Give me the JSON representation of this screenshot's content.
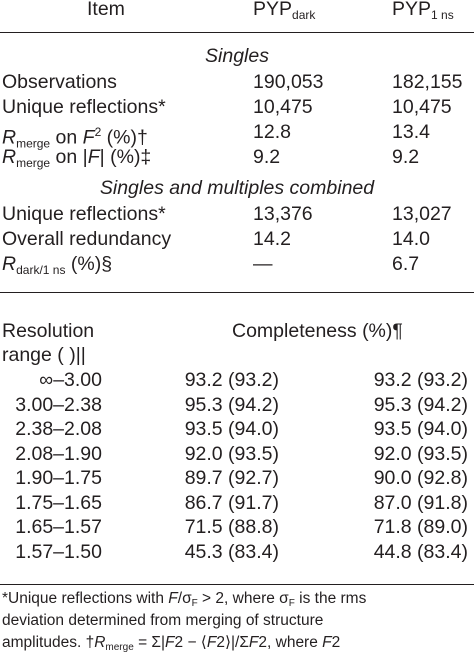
{
  "header": {
    "item": "Item",
    "col1_main": "PYP",
    "col1_sub": "dark",
    "col2_main": "PYP",
    "col2_sub": "1 ns"
  },
  "sections": {
    "singles": "Singles",
    "combined": "Singles and multiples combined"
  },
  "rows": {
    "observations": {
      "label": "Observations",
      "v1": "190,053",
      "v2": "182,155"
    },
    "unique1": {
      "label": "Unique reflections*",
      "v1": "10,475",
      "v2": "10,475"
    },
    "rmerge_f2": {
      "r": "R",
      "sub": "merge",
      "mid": " on ",
      "f": "F",
      "sup": "2",
      "tail": " (%)†",
      "v1": "12.8",
      "v2": "13.4"
    },
    "rmerge_f": {
      "r": "R",
      "sub": "merge",
      "mid": " on |",
      "f": "F",
      "tail": "| (%)‡",
      "v1": "9.2",
      "v2": "9.2"
    },
    "unique2": {
      "label": "Unique reflections*",
      "v1": "13,376",
      "v2": "13,027"
    },
    "redundancy": {
      "label": "Overall redundancy",
      "v1": "14.2",
      "v2": "14.0"
    },
    "rdark": {
      "r": "R",
      "sub": "dark/1 ns",
      "tail": " (%)§",
      "v1": "—",
      "v2": "6.7"
    }
  },
  "resolution": {
    "label_line1": "Resolution",
    "label_line2": "range (  )||",
    "completeness_header": "Completeness (%)¶",
    "rows": [
      {
        "range": "∞–3.00",
        "v1": "93.2 (93.2)",
        "v2": "93.2 (93.2)"
      },
      {
        "range": "3.00–2.38",
        "v1": "95.3 (94.2)",
        "v2": "95.3 (94.2)"
      },
      {
        "range": "2.38–2.08",
        "v1": "93.5 (94.0)",
        "v2": "93.5 (94.0)"
      },
      {
        "range": "2.08–1.90",
        "v1": "92.0 (93.5)",
        "v2": "92.0 (93.5)"
      },
      {
        "range": "1.90–1.75",
        "v1": "89.7 (92.7)",
        "v2": "90.0 (92.8)"
      },
      {
        "range": "1.75–1.65",
        "v1": "86.7 (91.7)",
        "v2": "87.0 (91.8)"
      },
      {
        "range": "1.65–1.57",
        "v1": "71.5 (88.8)",
        "v2": "71.8 (89.0)"
      },
      {
        "range": "1.57–1.50",
        "v1": "45.3 (83.4)",
        "v2": "44.8 (83.4)"
      }
    ]
  },
  "footnote": {
    "line1_a": "*Unique reflections with ",
    "line1_f": "F",
    "line1_slash": "/",
    "line1_sigma": "σ",
    "line1_sigsub": "F",
    "line1_b": " > 2, where ",
    "line1_sigma2": "σ",
    "line1_sigsub2": "F",
    "line1_c": " is the rms",
    "line2": "deviation   determined   from   merging   of   structure",
    "line3_a": "amplitudes.   †",
    "line3_r": "R",
    "line3_rsub": "merge",
    "line3_b": " = Σ|",
    "line3_f1": "F",
    "line3_c": "2 − ⟨",
    "line3_f2": "F",
    "line3_d": "2⟩|/Σ",
    "line3_f3": "F",
    "line3_e": "2, where ",
    "line3_f4": "F",
    "line3_f": "2"
  }
}
